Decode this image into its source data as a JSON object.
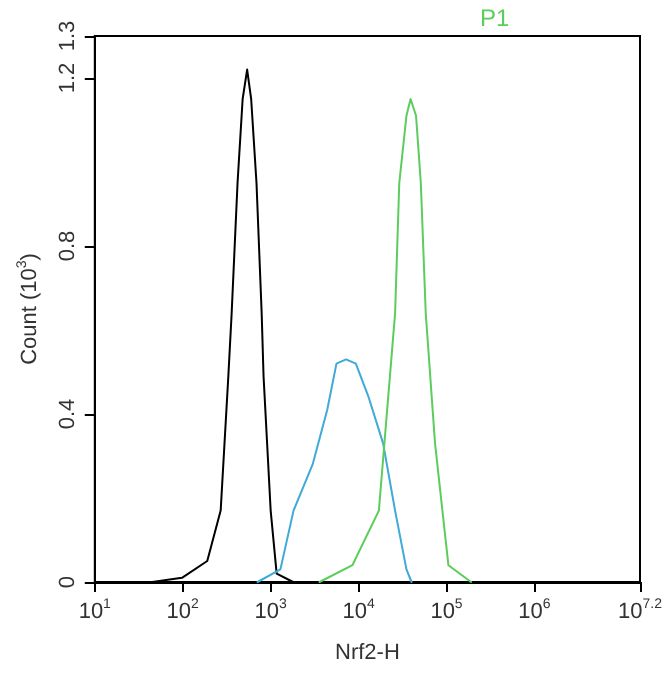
{
  "chart_data": {
    "type": "line",
    "xlabel": "Nrf2-H",
    "ylabel": "Count (10$^{3}$)",
    "log": "x",
    "grid": false,
    "marker": "none",
    "line_style": "solid",
    "xlim": [
      10,
      15848931.92
    ],
    "ylim": [
      0,
      1.3
    ],
    "xticks": [
      {
        "value": 10,
        "label": "10$^{1}$"
      },
      {
        "value": 100,
        "label": "10$^{2}$"
      },
      {
        "value": 1000,
        "label": "10$^{3}$"
      },
      {
        "value": 10000,
        "label": "10$^{4}$"
      },
      {
        "value": 100000,
        "label": "10$^{5}$"
      },
      {
        "value": 1000000,
        "label": "10$^{6}$"
      },
      {
        "value": 15848931.92,
        "label": "10$^{7.2}$"
      }
    ],
    "yticks": [
      0,
      0.4,
      0.8,
      1.2,
      1.3
    ],
    "annotations": [
      "P1"
    ],
    "series": [
      {
        "color": "#000000",
        "x": [
          45,
          98,
          190,
          270,
          330,
          360,
          420,
          480,
          540,
          600,
          690,
          790,
          830,
          1000,
          1170,
          1800
        ],
        "values": [
          0,
          0.01,
          0.05,
          0.17,
          0.49,
          0.64,
          0.95,
          1.15,
          1.22,
          1.15,
          0.95,
          0.64,
          0.49,
          0.17,
          0.02,
          0
        ]
      },
      {
        "color": "#3fa9d8",
        "x": [
          710,
          1290,
          1820,
          3000,
          4400,
          5600,
          7200,
          9300,
          13000,
          19000,
          26000,
          35000,
          40000
        ],
        "values": [
          0,
          0.03,
          0.17,
          0.28,
          0.41,
          0.52,
          0.53,
          0.52,
          0.44,
          0.33,
          0.17,
          0.03,
          0
        ]
      },
      {
        "color": "#5ccc5c",
        "x": [
          3600,
          8500,
          17000,
          26000,
          29000,
          35000,
          39000,
          45000,
          51000,
          58000,
          74000,
          105000,
          190000
        ],
        "values": [
          0,
          0.04,
          0.17,
          0.64,
          0.95,
          1.11,
          1.15,
          1.11,
          0.95,
          0.64,
          0.33,
          0.04,
          0
        ]
      }
    ]
  }
}
